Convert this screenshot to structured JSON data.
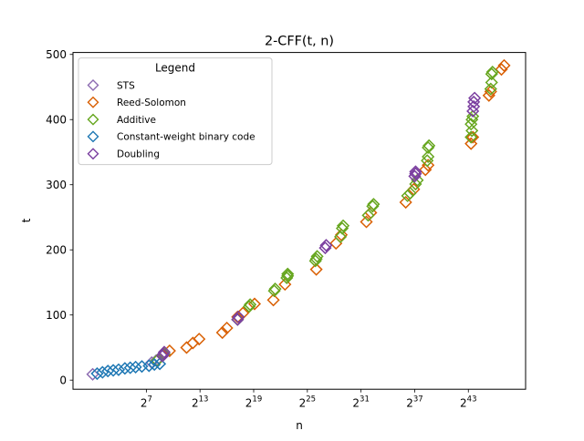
{
  "chart_data": {
    "type": "scatter",
    "title": "2-CFF(t, n)",
    "xlabel": "n",
    "ylabel": "t",
    "x_scale": "log2",
    "xlim_log2": [
      -1.2,
      49.4
    ],
    "ylim": [
      -14,
      503
    ],
    "x_ticks": [
      {
        "exp": 7,
        "base": "2",
        "label": "7"
      },
      {
        "exp": 13,
        "base": "2",
        "label": "13"
      },
      {
        "exp": 19,
        "base": "2",
        "label": "19"
      },
      {
        "exp": 25,
        "base": "2",
        "label": "25"
      },
      {
        "exp": 31,
        "base": "2",
        "label": "31"
      },
      {
        "exp": 37,
        "base": "2",
        "label": "37"
      },
      {
        "exp": 43,
        "base": "2",
        "label": "43"
      }
    ],
    "y_ticks": [
      0,
      100,
      200,
      300,
      400,
      500
    ],
    "grid": false,
    "legend": {
      "title": "Legend",
      "position": "top-left"
    },
    "marker": "diamond-hollow",
    "series": [
      {
        "name": "STS",
        "color": "#8c6bb1",
        "points": [
          [
            1.0,
            9
          ],
          [
            7.6,
            27
          ],
          [
            8.1,
            30
          ]
        ]
      },
      {
        "name": "Reed-Solomon",
        "color": "#d95f02",
        "points": [
          [
            9.0,
            40
          ],
          [
            9.6,
            45
          ],
          [
            11.5,
            50
          ],
          [
            12.2,
            57
          ],
          [
            12.9,
            63
          ],
          [
            15.5,
            73
          ],
          [
            16.0,
            80
          ],
          [
            17.2,
            97
          ],
          [
            17.8,
            103
          ],
          [
            19.1,
            117
          ],
          [
            21.2,
            123
          ],
          [
            22.5,
            147
          ],
          [
            26.0,
            170
          ],
          [
            28.2,
            210
          ],
          [
            28.8,
            223
          ],
          [
            31.6,
            243
          ],
          [
            32.1,
            257
          ],
          [
            36.0,
            273
          ],
          [
            36.9,
            293
          ],
          [
            38.2,
            323
          ],
          [
            38.5,
            330
          ],
          [
            43.3,
            363
          ],
          [
            43.5,
            373
          ],
          [
            45.3,
            437
          ],
          [
            45.5,
            443
          ],
          [
            46.7,
            477
          ],
          [
            47.0,
            483
          ]
        ]
      },
      {
        "name": "Additive",
        "color": "#66a61e",
        "points": [
          [
            8.2,
            30
          ],
          [
            9.0,
            40
          ],
          [
            17.2,
            93
          ],
          [
            18.5,
            113
          ],
          [
            18.6,
            116
          ],
          [
            21.3,
            137
          ],
          [
            21.4,
            140
          ],
          [
            22.7,
            157
          ],
          [
            22.8,
            160
          ],
          [
            22.8,
            163
          ],
          [
            25.9,
            183
          ],
          [
            26.0,
            186
          ],
          [
            26.1,
            190
          ],
          [
            28.7,
            220
          ],
          [
            28.9,
            233
          ],
          [
            29.0,
            237
          ],
          [
            31.8,
            253
          ],
          [
            32.3,
            267
          ],
          [
            32.4,
            270
          ],
          [
            36.2,
            283
          ],
          [
            36.5,
            287
          ],
          [
            37.1,
            301
          ],
          [
            37.3,
            307
          ],
          [
            38.4,
            337
          ],
          [
            38.5,
            343
          ],
          [
            38.5,
            357
          ],
          [
            38.6,
            360
          ],
          [
            43.3,
            373
          ],
          [
            43.4,
            383
          ],
          [
            43.3,
            393
          ],
          [
            43.4,
            400
          ],
          [
            43.5,
            405
          ],
          [
            45.5,
            447
          ],
          [
            45.6,
            457
          ],
          [
            45.6,
            470
          ],
          [
            45.7,
            473
          ]
        ]
      },
      {
        "name": "Constant-weight binary code",
        "color": "#1f78b4",
        "points": [
          [
            1.5,
            10
          ],
          [
            2.1,
            12
          ],
          [
            2.7,
            14
          ],
          [
            3.3,
            15
          ],
          [
            3.9,
            16
          ],
          [
            4.6,
            18
          ],
          [
            5.2,
            19
          ],
          [
            5.8,
            20
          ],
          [
            6.5,
            21
          ],
          [
            7.3,
            22
          ],
          [
            7.9,
            24
          ],
          [
            8.5,
            25
          ]
        ]
      },
      {
        "name": "Doubling",
        "color": "#7b3fa0",
        "points": [
          [
            8.8,
            37
          ],
          [
            8.9,
            40
          ],
          [
            9.0,
            43
          ],
          [
            17.2,
            93
          ],
          [
            17.3,
            97
          ],
          [
            27.0,
            203
          ],
          [
            27.1,
            207
          ],
          [
            37.0,
            313
          ],
          [
            37.1,
            317
          ],
          [
            37.1,
            320
          ],
          [
            43.5,
            413
          ],
          [
            43.6,
            420
          ],
          [
            43.6,
            427
          ],
          [
            43.7,
            433
          ]
        ]
      }
    ]
  }
}
